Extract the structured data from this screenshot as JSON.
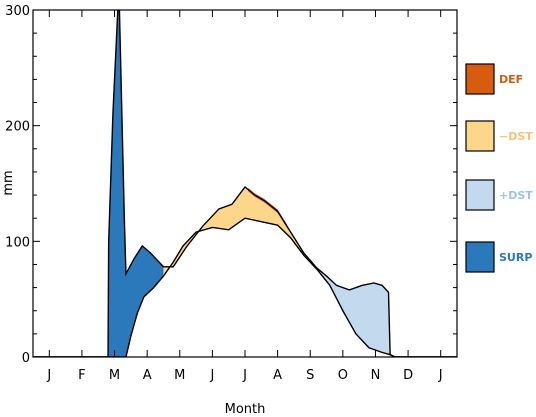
{
  "chart_data": {
    "type": "area",
    "title": "",
    "xlabel": "Month",
    "ylabel": "mm",
    "ylim": [
      0,
      300
    ],
    "yticks": [
      0,
      100,
      200,
      300
    ],
    "months": [
      "J",
      "F",
      "M",
      "A",
      "M",
      "J",
      "J",
      "A",
      "S",
      "O",
      "N",
      "D",
      "J"
    ],
    "month_positions": [
      1,
      2,
      3,
      4,
      5,
      6,
      7,
      8,
      9,
      10,
      11,
      12,
      13
    ],
    "series": [
      {
        "name": "DEF",
        "color": "#d85c10",
        "text_color": "#d85c10"
      },
      {
        "name": "−DST",
        "color": "#fcd68a",
        "text_color": "#f8c27a"
      },
      {
        "name": "+DST",
        "color": "#c3d9ee",
        "text_color": "#9ec5e8"
      },
      {
        "name": "SURP",
        "color": "#2b78bb",
        "text_color": "#2b78bb"
      }
    ],
    "upper_curve": [
      [
        0.5,
        0
      ],
      [
        1,
        0
      ],
      [
        1.5,
        0
      ],
      [
        2,
        0
      ],
      [
        2.5,
        0
      ],
      [
        2.8,
        0
      ],
      [
        2.82,
        100
      ],
      [
        2.95,
        210
      ],
      [
        3.1,
        300
      ],
      [
        3.15,
        300
      ],
      [
        3.3,
        120
      ],
      [
        3.35,
        72
      ],
      [
        3.6,
        85
      ],
      [
        3.85,
        96
      ],
      [
        4.1,
        90
      ],
      [
        4.5,
        78
      ],
      [
        4.8,
        78
      ],
      [
        5.2,
        95
      ],
      [
        5.7,
        113
      ],
      [
        6.2,
        128
      ],
      [
        6.6,
        132
      ],
      [
        7.0,
        147
      ],
      [
        7.3,
        140
      ],
      [
        7.6,
        135
      ],
      [
        8.0,
        126
      ],
      [
        8.4,
        108
      ],
      [
        8.8,
        90
      ],
      [
        9.2,
        77
      ],
      [
        9.5,
        70
      ],
      [
        9.8,
        62
      ],
      [
        10.2,
        58
      ],
      [
        10.6,
        62
      ],
      [
        10.95,
        64
      ],
      [
        11.2,
        62
      ],
      [
        11.4,
        56
      ],
      [
        11.45,
        2
      ],
      [
        11.6,
        0
      ],
      [
        12,
        0
      ],
      [
        12.5,
        0
      ],
      [
        13,
        0
      ],
      [
        13.5,
        0
      ]
    ],
    "lower_curve": [
      [
        0.5,
        0
      ],
      [
        1,
        0
      ],
      [
        1.5,
        0
      ],
      [
        2,
        0
      ],
      [
        2.5,
        0
      ],
      [
        3.0,
        0
      ],
      [
        3.35,
        0
      ],
      [
        3.5,
        18
      ],
      [
        3.7,
        38
      ],
      [
        3.9,
        52
      ],
      [
        4.2,
        60
      ],
      [
        4.5,
        70
      ],
      [
        4.8,
        82
      ],
      [
        5.1,
        96
      ],
      [
        5.5,
        108
      ],
      [
        6.0,
        112
      ],
      [
        6.5,
        110
      ],
      [
        7.0,
        120
      ],
      [
        7.5,
        117
      ],
      [
        8.0,
        114
      ],
      [
        8.4,
        103
      ],
      [
        8.8,
        88
      ],
      [
        9.2,
        76
      ],
      [
        9.6,
        62
      ],
      [
        10.0,
        40
      ],
      [
        10.4,
        20
      ],
      [
        10.8,
        8
      ],
      [
        11.2,
        4
      ],
      [
        11.45,
        2
      ],
      [
        11.6,
        0
      ],
      [
        12,
        0
      ],
      [
        13,
        0
      ],
      [
        13.5,
        0
      ]
    ],
    "legend_placement": "right",
    "grid": false
  }
}
